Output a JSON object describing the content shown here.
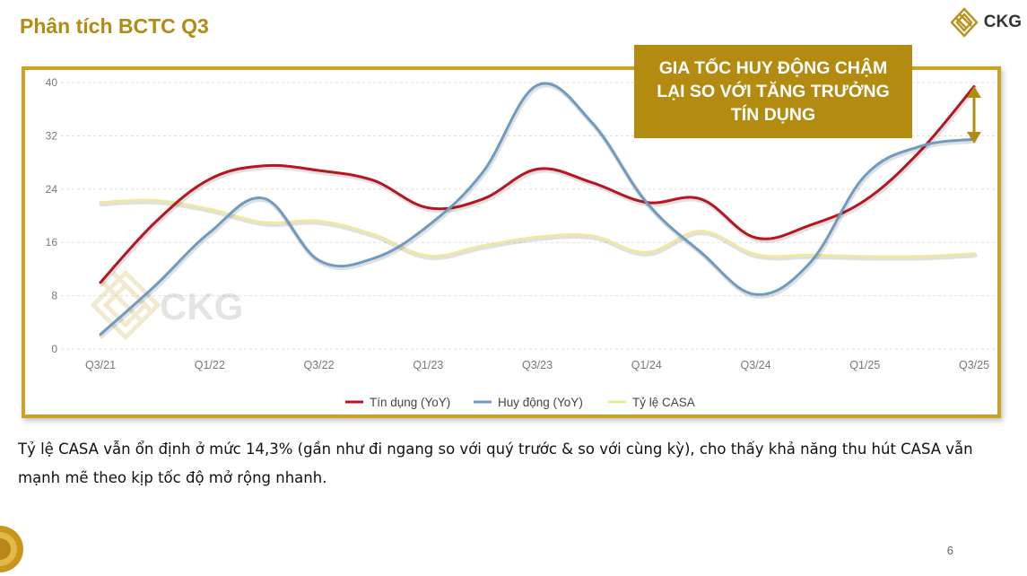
{
  "page": {
    "title": "Phân tích BCTC Q3",
    "logo_text": "CKG",
    "watermark_text": "CKG",
    "callout": "GIA TỐC HUY ĐỘNG CHẬM LẠI SO VỚI TĂNG TRƯỞNG TÍN DỤNG",
    "note": "Tỷ lệ CASA vẫn ổn định ở mức 14,3% (gần như đi ngang so với quý trước & so với cùng kỳ), cho thấy khả năng thu hút CASA vẫn mạnh mẽ theo kịp tốc độ mở rộng nhanh.",
    "page_number": "6"
  },
  "colors": {
    "accent": "#b58a12",
    "frame": "#c9a227",
    "callout_bg": "#b38b10"
  },
  "chart_data": {
    "type": "line",
    "x_ticks": [
      "Q3/21",
      "Q1/22",
      "Q3/22",
      "Q1/23",
      "Q3/23",
      "Q1/24",
      "Q3/24",
      "Q1/25",
      "Q3/25"
    ],
    "y_ticks": [
      "0",
      "8",
      "16",
      "24",
      "32",
      "40"
    ],
    "ylim": [
      0,
      40
    ],
    "grid": true,
    "legend_position": "bottom",
    "x": [
      "Q3/21",
      "Q4/21",
      "Q1/22",
      "Q2/22",
      "Q3/22",
      "Q4/22",
      "Q1/23",
      "Q2/23",
      "Q3/23",
      "Q4/23",
      "Q1/24",
      "Q2/24",
      "Q3/24",
      "Q4/24",
      "Q1/25",
      "Q2/25",
      "Q3/25"
    ],
    "series": [
      {
        "name": "Tín dụng (YoY)",
        "color": "#b5161f",
        "values": [
          10,
          19,
          25.5,
          27.5,
          26.8,
          25.3,
          21.2,
          22.5,
          27,
          25,
          22,
          22.5,
          16.7,
          18.6,
          22.3,
          29.6,
          39.4
        ]
      },
      {
        "name": "Huy động (YoY)",
        "color": "#6e9bc3",
        "values": [
          2.2,
          9.5,
          17.5,
          22.6,
          13.3,
          13.6,
          18.5,
          26.5,
          39.6,
          34,
          22,
          14.5,
          8.2,
          13,
          26,
          30.4,
          31.5
        ]
      },
      {
        "name": "Tỷ lệ CASA",
        "color": "#efe8a1",
        "values": [
          22,
          22.3,
          21,
          19,
          19.2,
          17.2,
          14,
          15.5,
          16.8,
          17,
          14.5,
          17.7,
          14.2,
          14.1,
          13.9,
          13.9,
          14.3
        ]
      }
    ]
  }
}
